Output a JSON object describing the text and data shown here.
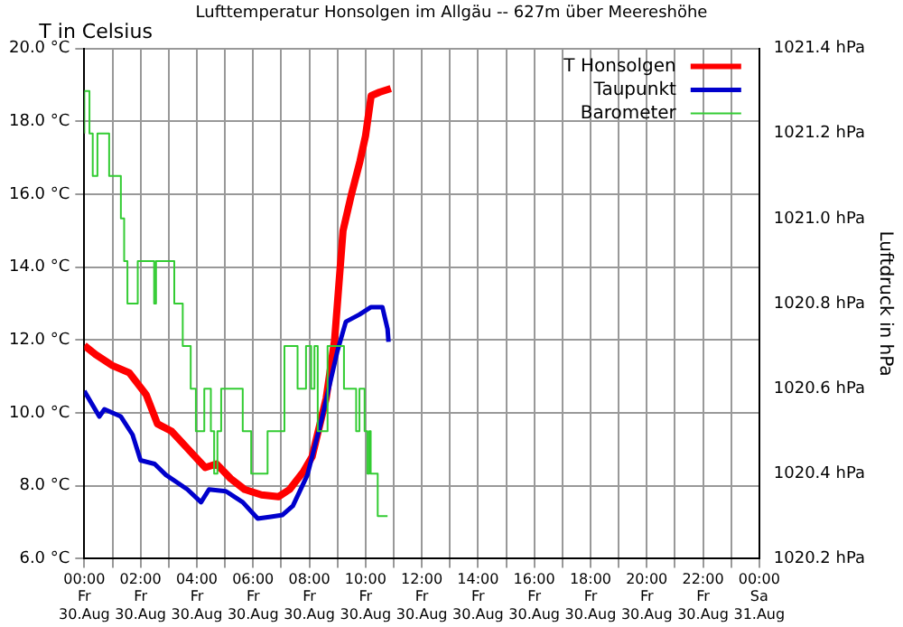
{
  "chart_data": {
    "type": "line",
    "title": "Lufttemperatur Honsolgen im Allgäu -- 627m über Meereshöhe",
    "ylabel": "T in Celsius",
    "y2label": "Luftdruck in hPa",
    "xlim": [
      "--08-30T00:00",
      "--08-31T00:00"
    ],
    "xticks": [
      {
        "value": "--08-30T00:00",
        "label": "00:00\nFr\n30.Aug"
      },
      {
        "value": "--08-30T01:00",
        "label": null
      },
      {
        "value": "--08-30T02:00",
        "label": "02:00\nFr\n30.Aug"
      },
      {
        "value": "--08-30T03:00",
        "label": null
      },
      {
        "value": "--08-30T04:00",
        "label": "04:00\nFr\n30.Aug"
      },
      {
        "value": "--08-30T05:00",
        "label": null
      },
      {
        "value": "--08-30T06:00",
        "label": "06:00\nFr\n30.Aug"
      },
      {
        "value": "--08-30T07:00",
        "label": null
      },
      {
        "value": "--08-30T08:00",
        "label": "08:00\nFr\n30.Aug"
      },
      {
        "value": "--08-30T09:00",
        "label": null
      },
      {
        "value": "--08-30T10:00",
        "label": "10:00\nFr\n30.Aug"
      },
      {
        "value": "--08-30T11:00",
        "label": null
      },
      {
        "value": "--08-30T12:00",
        "label": "12:00\nFr\n30.Aug"
      },
      {
        "value": "--08-30T13:00",
        "label": null
      },
      {
        "value": "--08-30T14:00",
        "label": "14:00\nFr\n30.Aug"
      },
      {
        "value": "--08-30T15:00",
        "label": null
      },
      {
        "value": "--08-30T16:00",
        "label": "16:00\nFr\n30.Aug"
      },
      {
        "value": "--08-30T17:00",
        "label": null
      },
      {
        "value": "--08-30T18:00",
        "label": "18:00\nFr\n30.Aug"
      },
      {
        "value": "--08-30T19:00",
        "label": null
      },
      {
        "value": "--08-30T20:00",
        "label": "20:00\nFr\n30.Aug"
      },
      {
        "value": "--08-30T21:00",
        "label": null
      },
      {
        "value": "--08-30T22:00",
        "label": "22:00\nFr\n30.Aug"
      },
      {
        "value": "--08-30T23:00",
        "label": null
      },
      {
        "value": "--08-31T00:00",
        "label": "00:00\nSa\n31.Aug"
      }
    ],
    "ylim": [
      6,
      20
    ],
    "yticks": [
      {
        "value": 6,
        "label": "6.0 °C"
      },
      {
        "value": 8,
        "label": "8.0 °C"
      },
      {
        "value": 10,
        "label": "10.0 °C"
      },
      {
        "value": 12,
        "label": "12.0 °C"
      },
      {
        "value": 14,
        "label": "14.0 °C"
      },
      {
        "value": 16,
        "label": "16.0 °C"
      },
      {
        "value": 18,
        "label": "18.0 °C"
      },
      {
        "value": 20,
        "label": "20.0 °C"
      }
    ],
    "y2lim": [
      1020.2,
      1021.4
    ],
    "y2ticks": [
      {
        "value": 1020.2,
        "label": "1020.2 hPa"
      },
      {
        "value": 1020.4,
        "label": "1020.4 hPa"
      },
      {
        "value": 1020.6,
        "label": "1020.6 hPa"
      },
      {
        "value": 1020.8,
        "label": "1020.8 hPa"
      },
      {
        "value": 1021.0,
        "label": "1021.0 hPa"
      },
      {
        "value": 1021.2,
        "label": "1021.2 hPa"
      },
      {
        "value": 1021.4,
        "label": "1021.4 hPa"
      }
    ],
    "grid": true,
    "legend": "top right",
    "marker": "none",
    "line_style": "solid",
    "series": [
      {
        "name": "T Honsolgen",
        "color": "#ff0000",
        "x": [
          "--08-30T00:00",
          "--08-30T00:24",
          "--08-30T01:00",
          "--08-30T01:36",
          "--08-30T02:12",
          "--08-30T02:36",
          "--08-30T03:06",
          "--08-30T03:42",
          "--08-30T04:18",
          "--08-30T04:42",
          "--08-30T05:12",
          "--08-30T05:42",
          "--08-30T06:18",
          "--08-30T06:54",
          "--08-30T07:18",
          "--08-30T07:48",
          "--08-30T08:06",
          "--08-30T08:36",
          "--08-30T08:54",
          "--08-30T09:12",
          "--08-30T09:30",
          "--08-30T09:48",
          "--08-30T10:00",
          "--08-30T10:12",
          "--08-30T10:30",
          "--08-30T10:54"
        ],
        "values": [
          11.85,
          11.6,
          11.3,
          11.1,
          10.5,
          9.7,
          9.5,
          9.0,
          8.5,
          8.6,
          8.2,
          7.9,
          7.75,
          7.7,
          7.9,
          8.4,
          8.8,
          10.4,
          12.0,
          15.0,
          16.0,
          16.9,
          17.6,
          18.7,
          18.8,
          18.9
        ]
      },
      {
        "name": "Taupunkt",
        "color": "#0000cc",
        "x": [
          "--08-30T00:00",
          "--08-30T00:32",
          "--08-30T00:43",
          "--08-30T01:18",
          "--08-30T01:43",
          "--08-30T02:00",
          "--08-30T02:30",
          "--08-30T02:54",
          "--08-30T03:40",
          "--08-30T04:09",
          "--08-30T04:26",
          "--08-30T05:02",
          "--08-30T05:38",
          "--08-30T06:10",
          "--08-30T06:38",
          "--08-30T07:03",
          "--08-30T07:25",
          "--08-30T07:56",
          "--08-30T08:25",
          "--08-30T09:00",
          "--08-30T09:18",
          "--08-30T09:47",
          "--08-30T10:11",
          "--08-30T10:36",
          "--08-30T10:47",
          "--08-30T10:49"
        ],
        "values": [
          10.6,
          9.9,
          10.1,
          9.9,
          9.4,
          8.7,
          8.6,
          8.3,
          7.9,
          7.55,
          7.9,
          7.85,
          7.55,
          7.1,
          7.15,
          7.2,
          7.45,
          8.3,
          9.75,
          11.7,
          12.5,
          12.7,
          12.9,
          12.9,
          12.3,
          11.95
        ]
      },
      {
        "name": "Barometer",
        "color": "#33cc33",
        "type": "step",
        "axis": "y2",
        "x": [
          "--08-30T00:00",
          "--08-30T00:11",
          "--08-30T00:18",
          "--08-30T00:28",
          "--08-30T00:53",
          "--08-30T01:18",
          "--08-30T01:25",
          "--08-30T01:32",
          "--08-30T01:54",
          "--08-30T02:29",
          "--08-30T02:33",
          "--08-30T03:12",
          "--08-30T03:30",
          "--08-30T03:47",
          "--08-30T03:58",
          "--08-30T04:16",
          "--08-30T04:30",
          "--08-30T04:37",
          "--08-30T04:44",
          "--08-30T04:52",
          "--08-30T05:38",
          "--08-30T05:56",
          "--08-30T06:31",
          "--08-30T07:07",
          "--08-30T07:35",
          "--08-30T07:53",
          "--08-30T08:04",
          "--08-30T08:11",
          "--08-30T08:18",
          "--08-30T08:39",
          "--08-30T09:14",
          "--08-30T09:40",
          "--08-30T09:47",
          "--08-30T09:58",
          "--08-30T10:04",
          "--08-30T10:08",
          "--08-30T10:11",
          "--08-30T10:26",
          "--08-30T10:40",
          "--08-30T10:47"
        ],
        "values": [
          1021.2,
          1021.3,
          1021.2,
          1021.1,
          1021.2,
          1021.1,
          1021.0,
          1020.9,
          1020.8,
          1020.9,
          1020.8,
          1020.9,
          1020.8,
          1020.7,
          1020.6,
          1020.5,
          1020.6,
          1020.5,
          1020.4,
          1020.5,
          1020.6,
          1020.5,
          1020.4,
          1020.5,
          1020.7,
          1020.6,
          1020.7,
          1020.6,
          1020.7,
          1020.5,
          1020.7,
          1020.6,
          1020.5,
          1020.6,
          1020.5,
          1020.4,
          1020.5,
          1020.4,
          1020.3,
          1020.3
        ]
      }
    ]
  }
}
